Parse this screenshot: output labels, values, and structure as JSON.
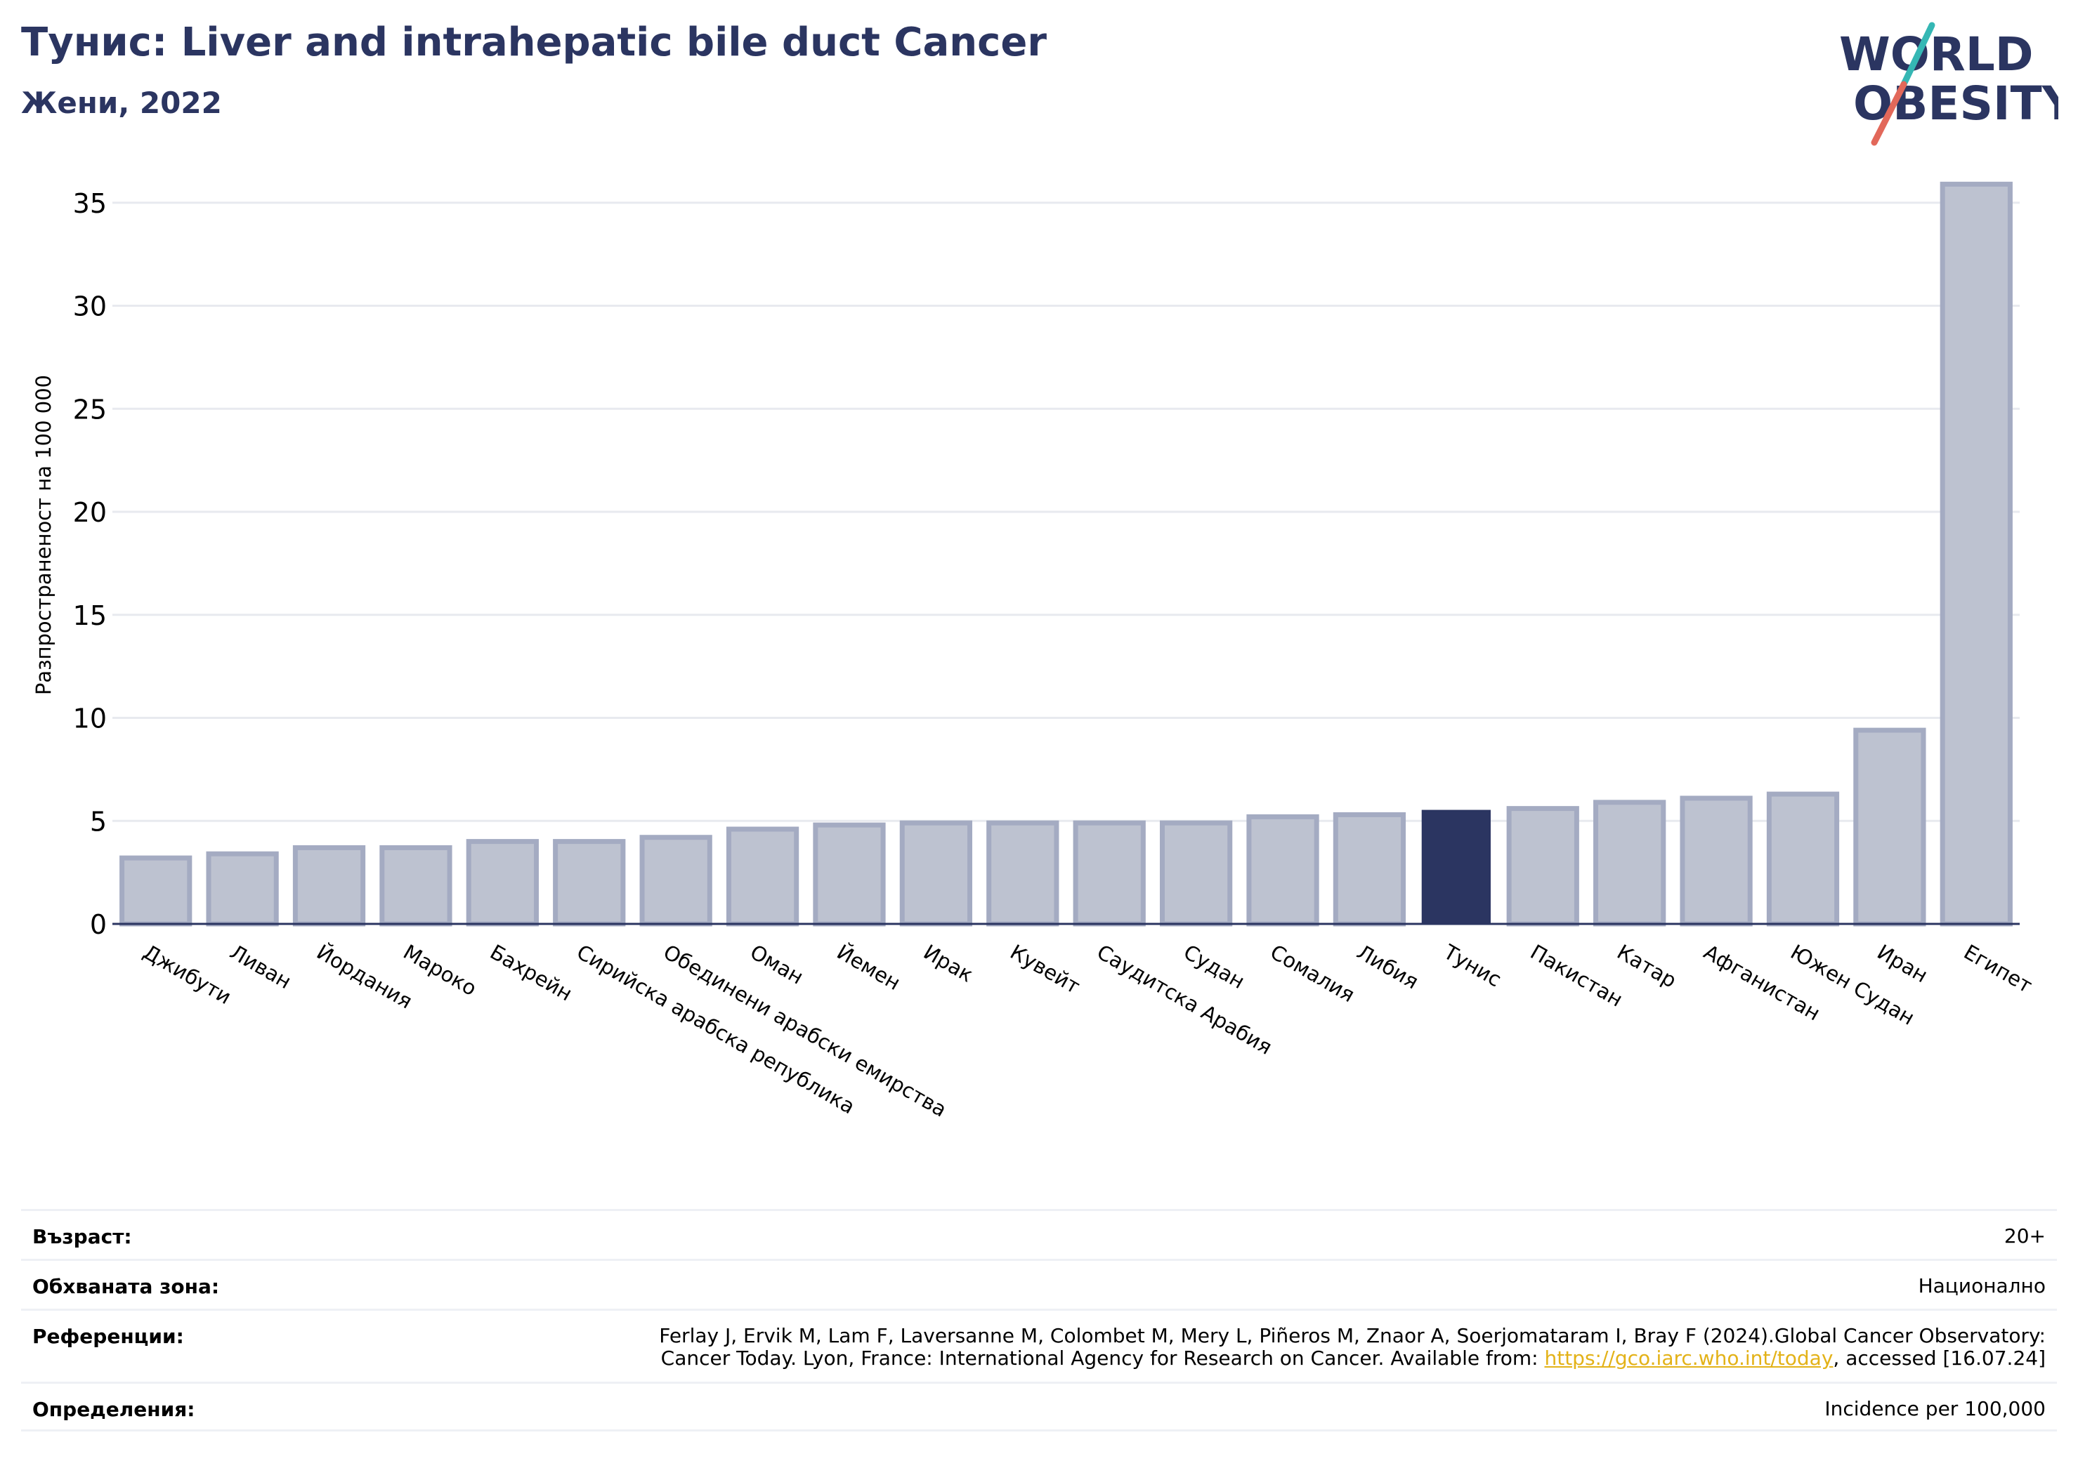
{
  "header": {
    "title": "Тунис: Liver and intrahepatic bile duct Cancer",
    "subtitle": "Жени, 2022"
  },
  "logo": {
    "line1": "WORLD",
    "line2": "OBESITY",
    "colors": {
      "text": "#2b3561",
      "slash_teal": "#35b7b4",
      "slash_red": "#e2685a"
    }
  },
  "colors": {
    "bar": "#bdc2d0",
    "bar_stroke": "#a4abc2",
    "highlight": "#2b3561",
    "grid": "#e8eaef",
    "axis": "#2b3561"
  },
  "chart_data": {
    "type": "bar",
    "ylabel": "Разпространеност  на 100 000",
    "ylim": [
      0,
      37
    ],
    "yticks": [
      0,
      5,
      10,
      15,
      20,
      25,
      30,
      35
    ],
    "grid": true,
    "highlight_category": "Тунис",
    "categories": [
      "Джибути",
      "Ливан",
      "Йордания",
      "Мароко",
      "Бахрейн",
      "Сирийска арабска република",
      "Обединени арабски емирства",
      "Оман",
      "Йемен",
      "Ирак",
      "Кувейт",
      "Саудитска Арабия",
      "Судан",
      "Сомалия",
      "Либия",
      "Тунис",
      "Пакистан",
      "Катар",
      "Афганистан",
      "Южен Судан",
      "Иран",
      "Египет"
    ],
    "values": [
      3.2,
      3.4,
      3.7,
      3.7,
      4.0,
      4.0,
      4.2,
      4.6,
      4.8,
      4.9,
      4.9,
      4.9,
      4.9,
      5.2,
      5.3,
      5.5,
      5.6,
      5.9,
      6.1,
      6.3,
      9.4,
      35.9
    ]
  },
  "info": {
    "age_label": "Възраст:",
    "age_value": "20+",
    "area_label": "Обхваната зона:",
    "area_value": "Национално",
    "ref_label": "Референции:",
    "ref_line1": "Ferlay J, Ervik M, Lam F, Laversanne M, Colombet M, Mery L, Piñeros M, Znaor A, Soerjomataram I, Bray F (2024).Global Cancer Observatory:",
    "ref_line2_pre": "Cancer Today. Lyon, France: International Agency for Research on Cancer. Available from: ",
    "ref_link": "https://gco.iarc.who.int/today",
    "ref_line2_post": ", accessed [16.07.24]",
    "def_label": "Определения:",
    "def_value": "Incidence per 100,000"
  }
}
